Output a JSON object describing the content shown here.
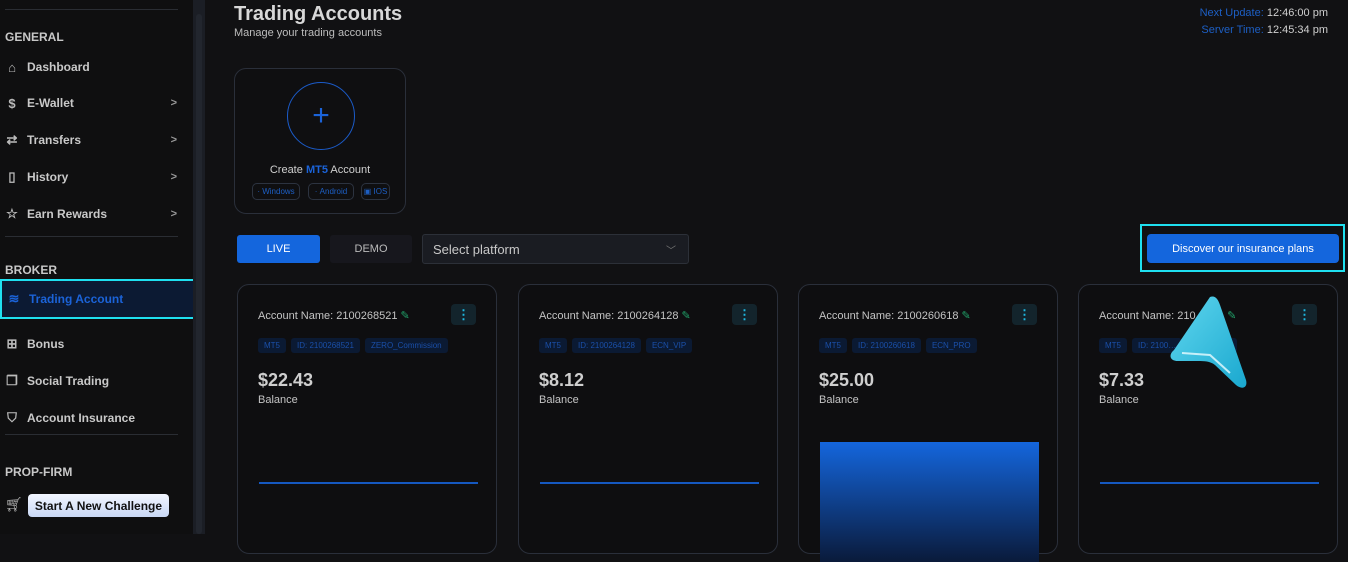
{
  "sidebar": {
    "sections": {
      "general": "GENERAL",
      "broker": "BROKER",
      "propfirm": "PROP-FIRM"
    },
    "items": [
      {
        "label": "Dashboard",
        "icon": "home-icon"
      },
      {
        "label": "E-Wallet",
        "icon": "dollar-icon"
      },
      {
        "label": "Transfers",
        "icon": "transfer-icon"
      },
      {
        "label": "History",
        "icon": "book-icon"
      },
      {
        "label": "Earn Rewards",
        "icon": "star-icon"
      },
      {
        "label": "Trading Account",
        "icon": "layers-icon",
        "active": true
      },
      {
        "label": "Bonus",
        "icon": "gift-icon"
      },
      {
        "label": "Social Trading",
        "icon": "copy-icon"
      },
      {
        "label": "Account Insurance",
        "icon": "shield-user-icon"
      }
    ],
    "challenge_button": "Start A New Challenge"
  },
  "header": {
    "title": "Trading Accounts",
    "subtitle": "Manage your trading accounts",
    "next_update_label": "Next Update:",
    "next_update": "12:46:00 pm",
    "server_time_label": "Server Time:",
    "server_time": "12:45:34 pm"
  },
  "create": {
    "prefix": "Create",
    "platform": "MT5",
    "suffix": "Account",
    "platforms": [
      "Windows",
      "Android",
      "IOS"
    ]
  },
  "filters": {
    "live": "LIVE",
    "demo": "DEMO",
    "platform_placeholder": "Select platform"
  },
  "insurance_button": "Discover our insurance plans",
  "accounts": [
    {
      "name": "Account Name: 2100268521",
      "tags": [
        "MT5",
        "ID: 2100268521",
        "ZERO_Commission"
      ],
      "balance": "$22.43",
      "balance_label": "Balance"
    },
    {
      "name": "Account Name: 2100264128",
      "tags": [
        "MT5",
        "ID: 2100264128",
        "ECN_VIP"
      ],
      "balance": "$8.12",
      "balance_label": "Balance"
    },
    {
      "name": "Account Name: 2100260618",
      "tags": [
        "MT5",
        "ID: 2100260618",
        "ECN_PRO"
      ],
      "balance": "$25.00",
      "balance_label": "Balance"
    },
    {
      "name": "Account Name: 210…611",
      "tags": [
        "MT5",
        "ID: 2100…",
        "…_Classic"
      ],
      "balance": "$7.33",
      "balance_label": "Balance"
    }
  ],
  "colors": {
    "accent": "#1466dd",
    "highlight": "#1fe0f0",
    "edit": "#21a36a"
  }
}
